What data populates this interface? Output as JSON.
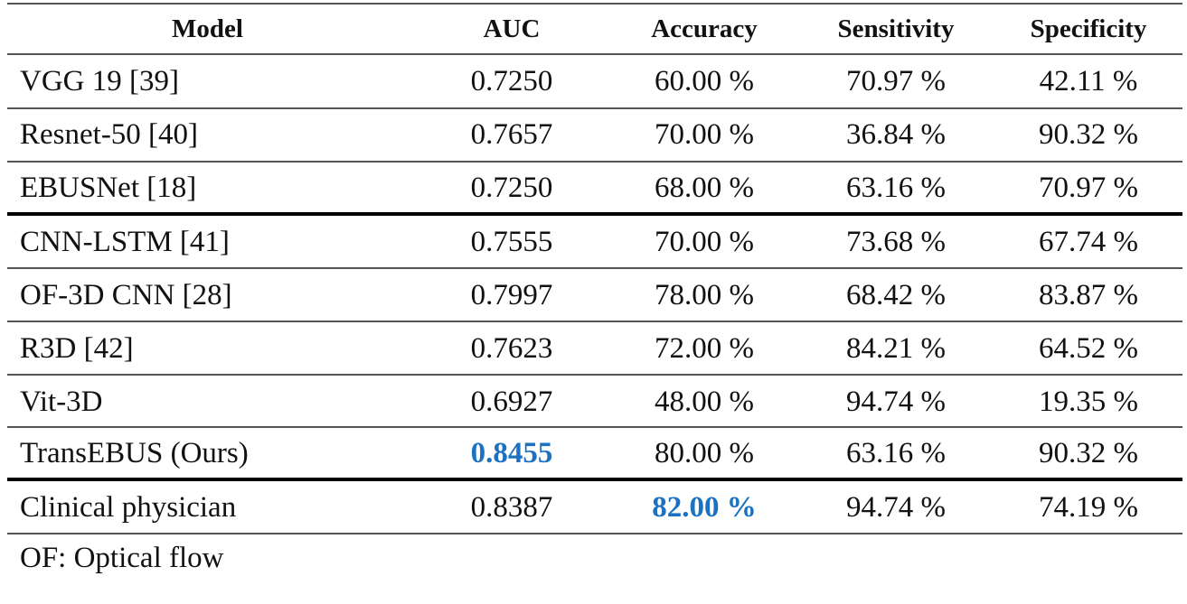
{
  "table": {
    "headers": [
      "Model",
      "AUC",
      "Accuracy",
      "Sensitivity",
      "Specificity"
    ],
    "rows": [
      {
        "model": "VGG 19 [39]",
        "auc": "0.7250",
        "accuracy": "60.00 %",
        "sensitivity": "70.97 %",
        "specificity": "42.11 %"
      },
      {
        "model": "Resnet-50 [40]",
        "auc": "0.7657",
        "accuracy": "70.00 %",
        "sensitivity": "36.84 %",
        "specificity": "90.32 %"
      },
      {
        "model": "EBUSNet [18]",
        "auc": "0.7250",
        "accuracy": "68.00 %",
        "sensitivity": "63.16 %",
        "specificity": "70.97 %"
      },
      {
        "model": "CNN-LSTM [41]",
        "auc": "0.7555",
        "accuracy": "70.00 %",
        "sensitivity": "73.68 %",
        "specificity": "67.74 %"
      },
      {
        "model": "OF-3D CNN [28]",
        "auc": "0.7997",
        "accuracy": "78.00 %",
        "sensitivity": "68.42 %",
        "specificity": "83.87 %"
      },
      {
        "model": "R3D [42]",
        "auc": "0.7623",
        "accuracy": "72.00 %",
        "sensitivity": "84.21 %",
        "specificity": "64.52 %"
      },
      {
        "model": "Vit-3D",
        "auc": "0.6927",
        "accuracy": "48.00 %",
        "sensitivity": "94.74 %",
        "specificity": "19.35 %"
      },
      {
        "model": "TransEBUS (Ours)",
        "auc": "0.8455",
        "accuracy": "80.00 %",
        "sensitivity": "63.16 %",
        "specificity": "90.32 %"
      },
      {
        "model": "Clinical physician",
        "auc": "0.8387",
        "accuracy": "82.00 %",
        "sensitivity": "94.74 %",
        "specificity": "74.19 %"
      }
    ],
    "highlight_color": "#1c72c0",
    "highlighted": [
      "TransEBUS (Ours) AUC",
      "Clinical physician Accuracy"
    ]
  },
  "footnote": "OF: Optical flow"
}
